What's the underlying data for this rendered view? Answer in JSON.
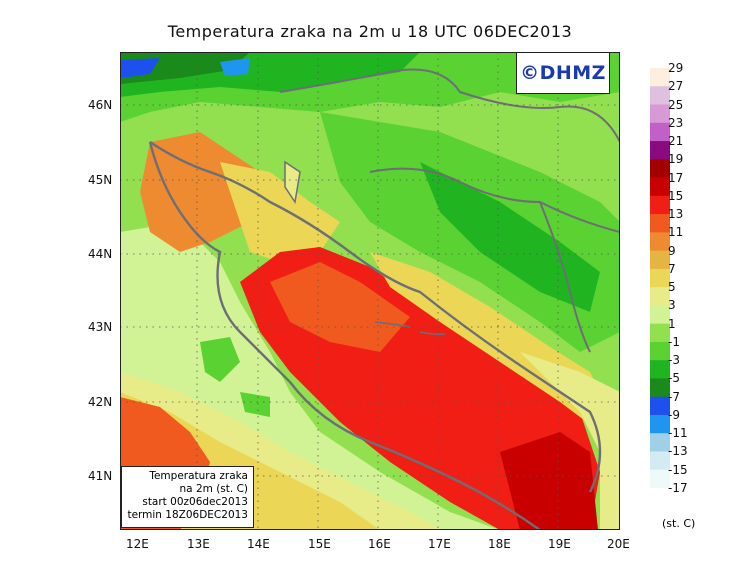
{
  "title": "Temperatura zraka na 2m u 18 UTC 06DEC2013",
  "copyright": "©DHMZ",
  "infobox": {
    "line1": "Temperatura zraka",
    "line2": "na 2m (st. C)",
    "line3": "start 00z06dec2013",
    "line4": "termin 18Z06DEC2013"
  },
  "axes": {
    "lon_ticks": [
      "12E",
      "13E",
      "14E",
      "15E",
      "16E",
      "17E",
      "18E",
      "19E",
      "20E"
    ],
    "lat_ticks": [
      "46N",
      "45N",
      "44N",
      "43N",
      "42N",
      "41N"
    ]
  },
  "legend": {
    "units": "(st. C)",
    "labels": [
      "29",
      "27",
      "25",
      "23",
      "21",
      "19",
      "17",
      "15",
      "13",
      "11",
      "9",
      "7",
      "5",
      "3",
      "1",
      "-1",
      "-3",
      "-5",
      "-7",
      "-9",
      "-11",
      "-13",
      "-15",
      "-17"
    ],
    "colors": [
      "#fdeee0",
      "#e0c0e0",
      "#d79ad7",
      "#c060c8",
      "#8a0a80",
      "#a50000",
      "#c80000",
      "#f01e14",
      "#f05a1e",
      "#ee8a30",
      "#e6b440",
      "#ecd656",
      "#e8ec88",
      "#d2f296",
      "#92e050",
      "#5ad232",
      "#20b420",
      "#1a8a1a",
      "#1e50f0",
      "#1e96f0",
      "#a0d0e6",
      "#d2ecf4",
      "#eefafa"
    ]
  }
}
